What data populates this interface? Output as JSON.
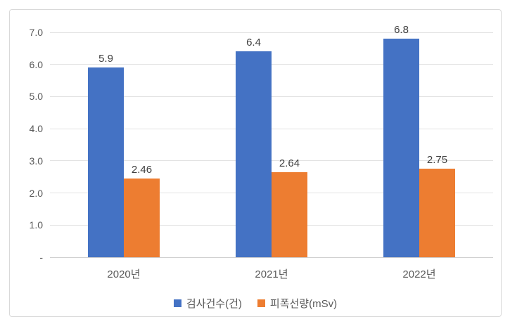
{
  "chart_data": {
    "type": "bar",
    "title": "",
    "xlabel": "",
    "ylabel": "",
    "categories": [
      "2020년",
      "2021년",
      "2022년"
    ],
    "series": [
      {
        "name": "검사건수(건)",
        "color": "#4472C4",
        "values": [
          5.9,
          6.4,
          6.8
        ],
        "labels": [
          "5.9",
          "6.4",
          "6.8"
        ]
      },
      {
        "name": "피폭선량(mSv)",
        "color": "#ED7D31",
        "values": [
          2.46,
          2.64,
          2.75
        ],
        "labels": [
          "2.46",
          "2.64",
          "2.75"
        ]
      }
    ],
    "ylim": [
      0,
      7
    ],
    "yticks": [
      {
        "value": 7,
        "label": "7.0"
      },
      {
        "value": 6,
        "label": "6.0"
      },
      {
        "value": 5,
        "label": "5.0"
      },
      {
        "value": 4,
        "label": "4.0"
      },
      {
        "value": 3,
        "label": "3.0"
      },
      {
        "value": 2,
        "label": "2.0"
      },
      {
        "value": 1,
        "label": "1.0"
      },
      {
        "value": 0,
        "label": "-"
      }
    ],
    "grid": true,
    "legend_position": "bottom"
  },
  "colors": {
    "series1": "#4472C4",
    "series2": "#ED7D31",
    "gridline": "#E2E2E2",
    "axis_line": "#CFCFCF",
    "tick_label": "#595959",
    "data_label": "#404040",
    "frame_border": "#D9D9D9",
    "background": "#FFFFFF"
  }
}
